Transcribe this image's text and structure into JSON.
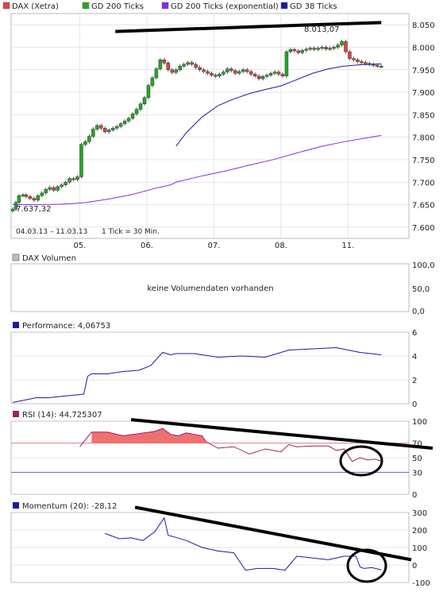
{
  "colors": {
    "dax": "#e04040",
    "gd200": "#22aa22",
    "gd200exp": "#8a2be2",
    "gd38": "#1a1aa0",
    "rsi_fill": "#f07070",
    "rsi_70": "#e08080",
    "rsi_30": "#6060c0",
    "grid": "#cccccc",
    "trend": "#000000"
  },
  "legend": [
    {
      "label": "DAX (Xetra)",
      "color": "#e04040"
    },
    {
      "label": "GD 200 Ticks",
      "color": "#22aa22"
    },
    {
      "label": "GD 200 Ticks (exponential)",
      "color": "#8a2be2"
    },
    {
      "label": "GD 38 Ticks",
      "color": "#1a1aa0"
    }
  ],
  "price_panel": {
    "min_label": "7.637,32",
    "max_label": "8.013,07",
    "date_range": "04.03.13 – 11.03.13",
    "tick_note": "1 Tick = 30 Min."
  },
  "x_ticks": [
    "05.",
    "06.",
    "07.",
    "08.",
    "11."
  ],
  "volume_panel": {
    "title": "DAX Volumen",
    "message": "keine Volumendaten vorhanden",
    "y_ticks": [
      "100,0",
      "50,0",
      "0,0"
    ]
  },
  "performance_panel": {
    "title": "Performance: 4,06753"
  },
  "rsi_panel": {
    "title": "RSI (14): 44,725307",
    "level_high": "70",
    "level_low": "30"
  },
  "momentum_panel": {
    "title": "Momentum (20): -28,12"
  },
  "chart_data": [
    {
      "type": "line",
      "title": "DAX (Xetra)",
      "ylim": [
        7575,
        8075
      ],
      "y_ticks": [
        7600,
        7650,
        7700,
        7750,
        7800,
        7850,
        7900,
        7950,
        8000,
        8050
      ],
      "y_tick_labels": [
        "7.600",
        "7.650",
        "7.700",
        "7.750",
        "7.800",
        "7.850",
        "7.900",
        "7.950",
        "8.000",
        "8.050"
      ],
      "series": [
        {
          "name": "DAX (Xetra)",
          "x": [
            0,
            4,
            8,
            13,
            17,
            22,
            27,
            32,
            37,
            42,
            47,
            52,
            57,
            62,
            67,
            72,
            77,
            82,
            87,
            92,
            97,
            102,
            107,
            112,
            117,
            122,
            127,
            132,
            137,
            142,
            147,
            152,
            157,
            162,
            167,
            172,
            177,
            182,
            187,
            192,
            197,
            202,
            207,
            212,
            217,
            222,
            227,
            232,
            237,
            242,
            247,
            252,
            257,
            262,
            267,
            272,
            277,
            282,
            287,
            292,
            297,
            302,
            307,
            312,
            317,
            322,
            327,
            332,
            337,
            342,
            347,
            352,
            357,
            362,
            367,
            372,
            377,
            382,
            387,
            392,
            397,
            402,
            407,
            412,
            417,
            422,
            427,
            432,
            437,
            442,
            447,
            452,
            457,
            462,
            467
          ],
          "y": [
            7640,
            7655,
            7670,
            7672,
            7668,
            7664,
            7660,
            7670,
            7676,
            7684,
            7688,
            7682,
            7690,
            7694,
            7700,
            7708,
            7706,
            7712,
            7784,
            7790,
            7802,
            7818,
            7826,
            7820,
            7812,
            7816,
            7820,
            7824,
            7830,
            7836,
            7842,
            7852,
            7862,
            7874,
            7888,
            7915,
            7932,
            7952,
            7972,
            7965,
            7950,
            7944,
            7950,
            7958,
            7962,
            7966,
            7962,
            7955,
            7950,
            7946,
            7942,
            7938,
            7936,
            7940,
            7945,
            7952,
            7948,
            7942,
            7946,
            7950,
            7946,
            7940,
            7936,
            7930,
            7935,
            7938,
            7942,
            7945,
            7940,
            7936,
            7990,
            7995,
            7992,
            7988,
            7993,
            7996,
            7998,
            7995,
            7998,
            8000,
            7996,
            7998,
            8000,
            8005,
            8013,
            7990,
            7975,
            7972,
            7968,
            7966,
            7964,
            7962,
            7960,
            7958,
            7958
          ]
        },
        {
          "name": "GD 38 Ticks",
          "x": [
            207,
            220,
            240,
            260,
            280,
            300,
            320,
            340,
            360,
            380,
            400,
            420,
            440,
            467
          ],
          "y": [
            7780,
            7810,
            7845,
            7870,
            7885,
            7897,
            7906,
            7914,
            7928,
            7942,
            7952,
            7958,
            7961,
            7963
          ]
        },
        {
          "name": "GD 200 Ticks (exponential)",
          "x": [
            0,
            30,
            60,
            90,
            120,
            150,
            180,
            200,
            207,
            240,
            270,
            300,
            330,
            360,
            390,
            420,
            450,
            467
          ],
          "y": [
            7650,
            7650,
            7651,
            7654,
            7662,
            7672,
            7686,
            7694,
            7700,
            7714,
            7725,
            7738,
            7750,
            7765,
            7779,
            7790,
            7799,
            7804
          ]
        }
      ],
      "annotations": [
        {
          "text": "trendline",
          "x": [
            130,
            467
          ],
          "y": [
            8035,
            8055
          ]
        }
      ]
    },
    {
      "type": "area",
      "title": "Performance: 4,06753",
      "ylim": [
        0,
        6
      ],
      "y_ticks": [
        0,
        2,
        4,
        6
      ],
      "series": [
        {
          "name": "Performance",
          "x": [
            0,
            15,
            30,
            45,
            60,
            75,
            90,
            95,
            100,
            120,
            140,
            160,
            175,
            190,
            200,
            207,
            230,
            260,
            290,
            320,
            350,
            380,
            410,
            440,
            467
          ],
          "y": [
            0.1,
            0.3,
            0.5,
            0.5,
            0.6,
            0.7,
            0.8,
            2.3,
            2.5,
            2.5,
            2.7,
            2.8,
            3.2,
            4.3,
            4.1,
            4.2,
            4.2,
            3.9,
            4.0,
            3.9,
            4.5,
            4.6,
            4.7,
            4.3,
            4.1
          ]
        }
      ]
    },
    {
      "type": "area",
      "title": "RSI (14): 44,725307",
      "ylim": [
        0,
        100
      ],
      "y_ticks": [
        0,
        30,
        50,
        70,
        100
      ],
      "series": [
        {
          "name": "RSI (14)",
          "x": [
            85,
            100,
            120,
            140,
            160,
            180,
            190,
            200,
            210,
            220,
            230,
            240,
            245,
            260,
            280,
            300,
            320,
            340,
            350,
            360,
            380,
            400,
            410,
            420,
            430,
            440,
            450,
            460,
            467
          ],
          "y": [
            65,
            85,
            85,
            80,
            83,
            86,
            90,
            82,
            80,
            84,
            82,
            80,
            72,
            63,
            65,
            55,
            62,
            58,
            68,
            65,
            66,
            66,
            60,
            62,
            45,
            50,
            47,
            48,
            45
          ]
        }
      ],
      "annotations": [
        {
          "text": "trendline",
          "x": [
            150,
            545
          ],
          "y": [
            102,
            63
          ]
        }
      ]
    },
    {
      "type": "line",
      "title": "Momentum (20): -28,12",
      "ylim": [
        -100,
        300
      ],
      "y_ticks": [
        -100,
        0,
        100,
        200,
        300
      ],
      "series": [
        {
          "name": "Momentum (20)",
          "x": [
            117,
            135,
            150,
            165,
            180,
            192,
            197,
            205,
            220,
            240,
            260,
            280,
            295,
            310,
            330,
            345,
            360,
            380,
            400,
            420,
            435,
            440,
            445,
            455,
            467
          ],
          "y": [
            180,
            150,
            155,
            140,
            190,
            270,
            170,
            160,
            140,
            100,
            80,
            70,
            -30,
            -20,
            -20,
            -30,
            50,
            40,
            30,
            50,
            50,
            -10,
            -20,
            -15,
            -28
          ]
        }
      ],
      "annotations": [
        {
          "text": "trendline",
          "x": [
            155,
            505
          ],
          "y": [
            330,
            30
          ]
        }
      ]
    }
  ]
}
